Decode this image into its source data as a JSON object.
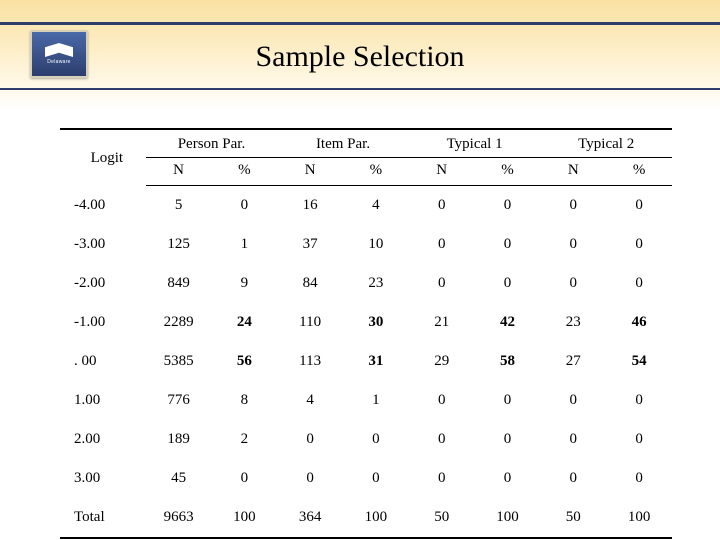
{
  "title": "Sample Selection",
  "logo_label": "Delaware",
  "table": {
    "logit_header": "Logit",
    "groups": [
      "Person Par.",
      "Item Par.",
      "Typical 1",
      "Typical 2"
    ],
    "sub_headers": [
      "N",
      "%"
    ],
    "rows": [
      {
        "logit": "-4.00",
        "cells": [
          "5",
          "0",
          "16",
          "4",
          "0",
          "0",
          "0",
          "0"
        ],
        "bold": [
          false,
          false,
          false,
          false,
          false,
          false,
          false,
          false
        ]
      },
      {
        "logit": "-3.00",
        "cells": [
          "125",
          "1",
          "37",
          "10",
          "0",
          "0",
          "0",
          "0"
        ],
        "bold": [
          false,
          false,
          false,
          false,
          false,
          false,
          false,
          false
        ]
      },
      {
        "logit": "-2.00",
        "cells": [
          "849",
          "9",
          "84",
          "23",
          "0",
          "0",
          "0",
          "0"
        ],
        "bold": [
          false,
          false,
          false,
          false,
          false,
          false,
          false,
          false
        ]
      },
      {
        "logit": "-1.00",
        "cells": [
          "2289",
          "24",
          "110",
          "30",
          "21",
          "42",
          "23",
          "46"
        ],
        "bold": [
          false,
          true,
          false,
          true,
          false,
          true,
          false,
          true
        ]
      },
      {
        "logit": ". 00",
        "cells": [
          "5385",
          "56",
          "113",
          "31",
          "29",
          "58",
          "27",
          "54"
        ],
        "bold": [
          false,
          true,
          false,
          true,
          false,
          true,
          false,
          true
        ]
      },
      {
        "logit": "1.00",
        "cells": [
          "776",
          "8",
          "4",
          "1",
          "0",
          "0",
          "0",
          "0"
        ],
        "bold": [
          false,
          false,
          false,
          false,
          false,
          false,
          false,
          false
        ]
      },
      {
        "logit": "2.00",
        "cells": [
          "189",
          "2",
          "0",
          "0",
          "0",
          "0",
          "0",
          "0"
        ],
        "bold": [
          false,
          false,
          false,
          false,
          false,
          false,
          false,
          false
        ]
      },
      {
        "logit": "3.00",
        "cells": [
          "45",
          "0",
          "0",
          "0",
          "0",
          "0",
          "0",
          "0"
        ],
        "bold": [
          false,
          false,
          false,
          false,
          false,
          false,
          false,
          false
        ]
      },
      {
        "logit": "Total",
        "cells": [
          "9663",
          "100",
          "364",
          "100",
          "50",
          "100",
          "50",
          "100"
        ],
        "bold": [
          false,
          false,
          false,
          false,
          false,
          false,
          false,
          false
        ]
      }
    ]
  },
  "colors": {
    "rule": "#2d3e6e",
    "band_top": "#fae1a2",
    "band_bottom": "#ffffff",
    "text": "#000000"
  }
}
